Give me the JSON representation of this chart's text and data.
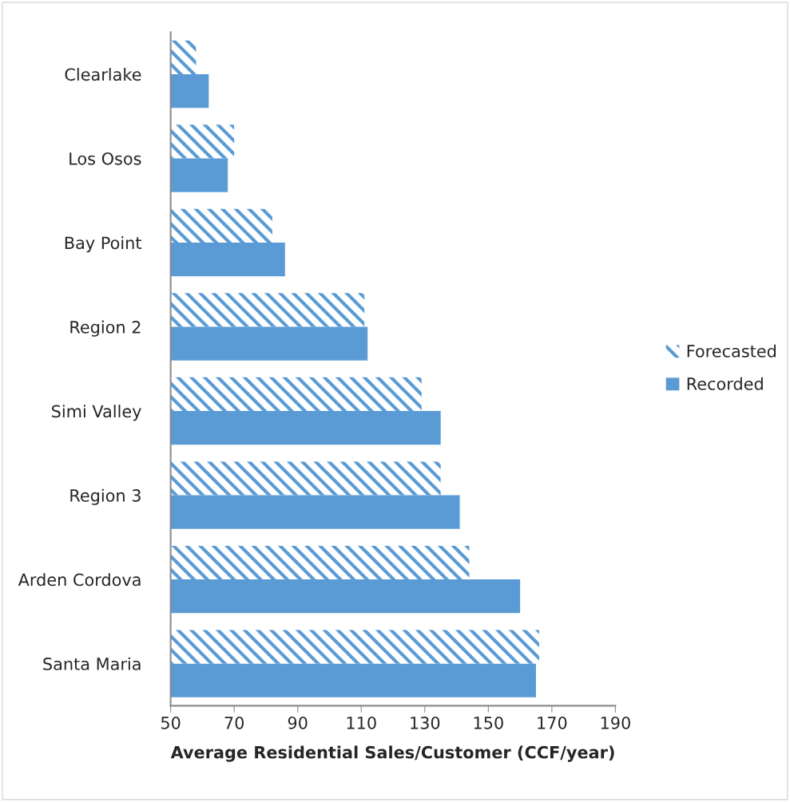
{
  "chart_data": {
    "type": "bar",
    "orientation": "horizontal",
    "categories": [
      "Clearlake",
      "Los Osos",
      "Bay Point",
      "Region 2",
      "Simi Valley",
      "Region 3",
      "Arden Cordova",
      "Santa Maria"
    ],
    "series": [
      {
        "name": "Forecasted",
        "color": "#5b9bd5",
        "values": [
          58,
          70,
          82,
          111,
          129,
          135,
          144,
          166
        ]
      },
      {
        "name": "Recorded",
        "color": "#5b9bd5",
        "values": [
          62,
          68,
          86,
          112,
          135,
          141,
          160,
          165
        ]
      }
    ],
    "xlabel": "Average Residential Sales/Customer (CCF/year)",
    "xlim": [
      50,
      190
    ],
    "xticks": [
      50,
      70,
      90,
      110,
      130,
      150,
      170,
      190
    ],
    "grid": false,
    "legend": "right"
  }
}
